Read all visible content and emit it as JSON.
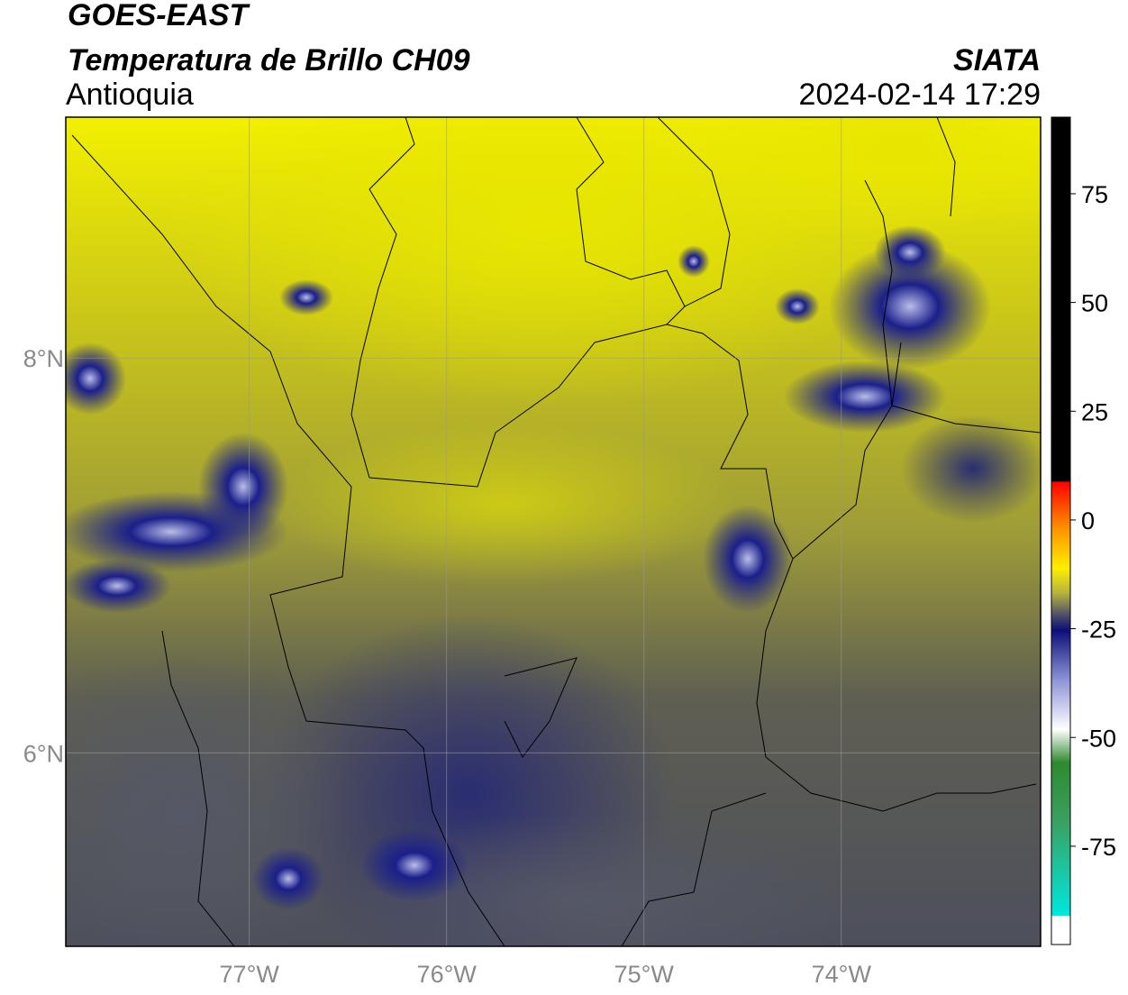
{
  "header": {
    "title": "GOES-EAST",
    "subtitle": "Temperatura de Brillo CH09",
    "region": "Antioquia",
    "source": "SIATA",
    "datetime": "2024-02-14 17:29"
  },
  "map": {
    "xlim": [
      -77.93,
      -72.99
    ],
    "ylim": [
      5.02,
      9.22
    ],
    "xticks": [
      {
        "value": -77,
        "label": "77°W"
      },
      {
        "value": -76,
        "label": "76°W"
      },
      {
        "value": -75,
        "label": "75°W"
      },
      {
        "value": -74,
        "label": "74°W"
      }
    ],
    "yticks": [
      {
        "value": 6,
        "label": "6°N"
      },
      {
        "value": 8,
        "label": "8°N"
      }
    ],
    "grid": true
  },
  "colorbar": {
    "lim": [
      -97.6,
      92.6
    ],
    "ticks": [
      -75,
      -50,
      -25,
      0,
      25,
      50,
      75
    ]
  }
}
